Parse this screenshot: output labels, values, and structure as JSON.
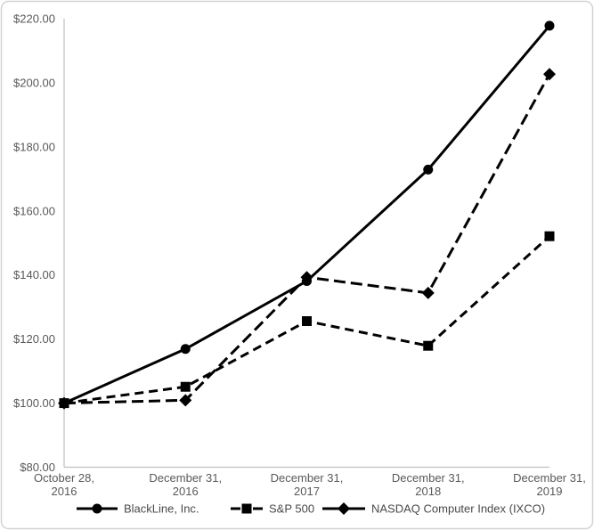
{
  "chart_data": {
    "type": "line",
    "title": "",
    "xlabel": "",
    "ylabel": "",
    "grid": false,
    "legend_position": "bottom",
    "categories": [
      "October 28, 2016",
      "December 31, 2016",
      "December 31, 2017",
      "December 31, 2018",
      "December 31, 2019"
    ],
    "series": [
      {
        "name": "BlackLine, Inc.",
        "marker": "circle",
        "line_style": "solid",
        "color": "#000000",
        "values": [
          100.0,
          116.9,
          138.1,
          172.9,
          217.8
        ]
      },
      {
        "name": "S&P 500",
        "marker": "square",
        "line_style": "dashed",
        "color": "#000000",
        "values": [
          100.0,
          105.1,
          125.6,
          117.9,
          152.1
        ]
      },
      {
        "name": "NASDAQ Computer Index (IXCO)",
        "marker": "diamond",
        "line_style": "long-dash",
        "color": "#000000",
        "values": [
          100.0,
          100.9,
          139.3,
          134.4,
          202.7
        ]
      }
    ],
    "y_tick_labels": [
      "$220.00",
      "$200.00",
      "$180.00",
      "$160.00",
      "$140.00",
      "$120.00",
      "$100.00",
      "$80.00"
    ],
    "ylim": [
      80,
      220
    ],
    "colors": {
      "series": "#000000",
      "axis_line": "#bfbfbf",
      "tick_text": "#595959",
      "legend_text": "#4a4a4a",
      "border": "#d2d2d2",
      "background": "#ffffff"
    }
  }
}
